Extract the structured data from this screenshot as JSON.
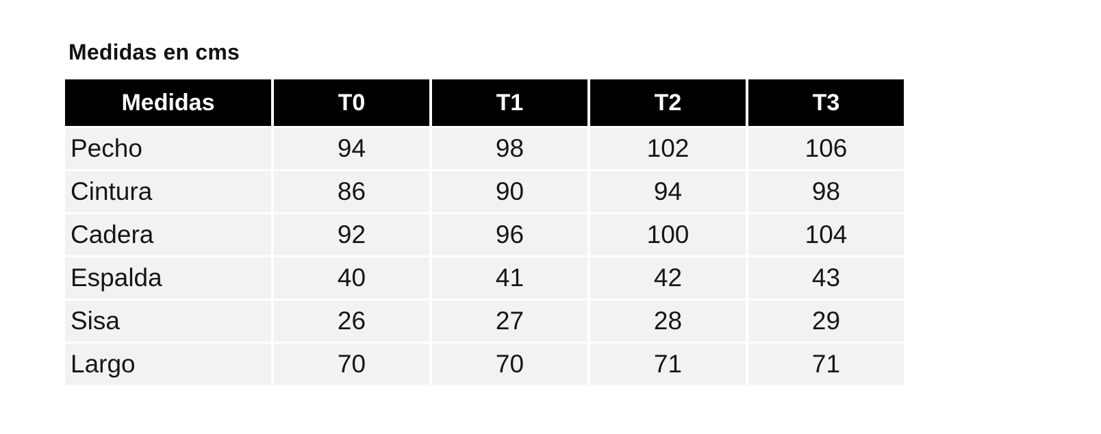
{
  "page": {
    "title": "Medidas en cms"
  },
  "colors": {
    "header_bg": "#000000",
    "header_text": "#ffffff",
    "cell_bg": "#f2f2f2",
    "cell_text": "#161616",
    "gutter": "#ffffff"
  },
  "table": {
    "headers": [
      "Medidas",
      "T0",
      "T1",
      "T2",
      "T3"
    ],
    "rows": [
      {
        "label": "Pecho",
        "values": [
          "94",
          "98",
          "102",
          "106"
        ]
      },
      {
        "label": "Cintura",
        "values": [
          "86",
          "90",
          "94",
          "98"
        ]
      },
      {
        "label": "Cadera",
        "values": [
          "92",
          "96",
          "100",
          "104"
        ]
      },
      {
        "label": "Espalda",
        "values": [
          "40",
          "41",
          "42",
          "43"
        ]
      },
      {
        "label": "Sisa",
        "values": [
          "26",
          "27",
          "28",
          "29"
        ]
      },
      {
        "label": "Largo",
        "values": [
          "70",
          "70",
          "71",
          "71"
        ]
      }
    ]
  },
  "chart_data": {
    "type": "table",
    "title": "Medidas en cms",
    "columns": [
      "Medidas",
      "T0",
      "T1",
      "T2",
      "T3"
    ],
    "rows": [
      [
        "Pecho",
        94,
        98,
        102,
        106
      ],
      [
        "Cintura",
        86,
        90,
        94,
        98
      ],
      [
        "Cadera",
        92,
        96,
        100,
        104
      ],
      [
        "Espalda",
        40,
        41,
        42,
        43
      ],
      [
        "Sisa",
        26,
        27,
        28,
        29
      ],
      [
        "Largo",
        70,
        70,
        71,
        71
      ]
    ]
  }
}
